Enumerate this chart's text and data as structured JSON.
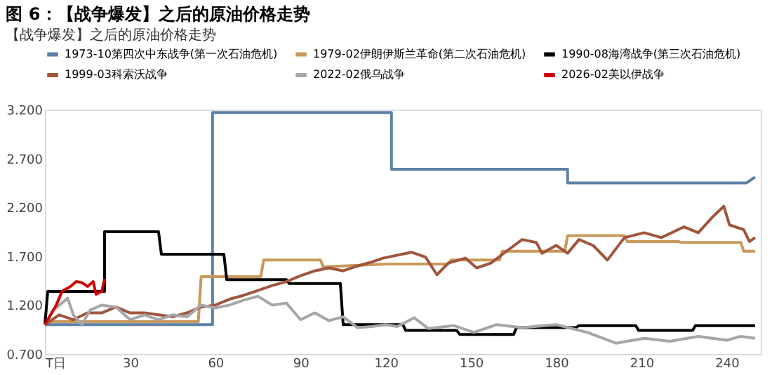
{
  "chart_data": {
    "type": "line",
    "title": "图 6：【战争爆发】之后的原油价格走势",
    "subtitle": "【战争爆发】之后的原油价格走势",
    "xlim": [
      0,
      252
    ],
    "xticks": [
      {
        "value": 0,
        "label": "T日"
      },
      30,
      60,
      90,
      120,
      150,
      180,
      210,
      240
    ],
    "ylim": [
      0.7,
      3.2
    ],
    "yticks": [
      {
        "value": 0.7,
        "label": "0.700"
      },
      {
        "value": 1.2,
        "label": "1.200"
      },
      {
        "value": 1.7,
        "label": "1.700"
      },
      {
        "value": 2.2,
        "label": "2.200"
      },
      {
        "value": 2.7,
        "label": "2.700"
      },
      {
        "value": 3.2,
        "label": "3.200"
      }
    ],
    "grid": false,
    "legend": "top",
    "line_style": "solid",
    "marker": "none",
    "series": [
      {
        "name": "1973-10第四次中东战争(第一次石油危机)",
        "color": "#5b80a5",
        "x": [
          0,
          59,
          59,
          122,
          122,
          184,
          184,
          247,
          250
        ],
        "values": [
          1.0,
          1.0,
          3.17,
          3.17,
          2.59,
          2.59,
          2.45,
          2.45,
          2.51
        ]
      },
      {
        "name": "1979-02伊朗伊斯兰革命(第二次石油危机)",
        "color": "#c9995b",
        "x": [
          0,
          1,
          54,
          55,
          76,
          77,
          97,
          98,
          120,
          142,
          143,
          160,
          161,
          183,
          184,
          204,
          205,
          223,
          224,
          245,
          246,
          250
        ],
        "values": [
          1.0,
          1.03,
          1.03,
          1.49,
          1.49,
          1.66,
          1.66,
          1.59,
          1.62,
          1.62,
          1.66,
          1.66,
          1.75,
          1.75,
          1.91,
          1.91,
          1.85,
          1.85,
          1.84,
          1.84,
          1.75,
          1.75
        ]
      },
      {
        "name": "1990-08海湾战争(第三次石油危机)",
        "color": "#000000",
        "x": [
          0,
          1,
          21,
          21,
          40,
          41,
          63,
          64,
          85,
          86,
          104,
          105,
          126,
          127,
          145,
          146,
          165,
          166,
          187,
          188,
          208,
          209,
          228,
          229,
          250
        ],
        "values": [
          1.0,
          1.34,
          1.34,
          1.95,
          1.95,
          1.72,
          1.72,
          1.46,
          1.46,
          1.42,
          1.42,
          1.0,
          1.0,
          0.94,
          0.94,
          0.9,
          0.9,
          0.97,
          0.97,
          0.99,
          0.99,
          0.94,
          0.94,
          0.99,
          0.99
        ]
      },
      {
        "name": "1999-03科索沃战争",
        "color": "#a0553c",
        "x": [
          0,
          5,
          10,
          15,
          20,
          25,
          30,
          35,
          40,
          45,
          50,
          55,
          60,
          65,
          70,
          75,
          80,
          85,
          90,
          95,
          100,
          105,
          110,
          115,
          119,
          129,
          134,
          138,
          142,
          148,
          152,
          157,
          162,
          168,
          173,
          175,
          180,
          184,
          188,
          193,
          198,
          204,
          211,
          217,
          225,
          230,
          235,
          239,
          241,
          246,
          248,
          250
        ],
        "values": [
          1.0,
          1.1,
          1.05,
          1.12,
          1.12,
          1.18,
          1.12,
          1.12,
          1.1,
          1.08,
          1.12,
          1.18,
          1.2,
          1.26,
          1.3,
          1.35,
          1.4,
          1.44,
          1.5,
          1.55,
          1.58,
          1.55,
          1.6,
          1.64,
          1.68,
          1.74,
          1.69,
          1.51,
          1.63,
          1.68,
          1.58,
          1.63,
          1.74,
          1.87,
          1.84,
          1.73,
          1.81,
          1.73,
          1.87,
          1.81,
          1.66,
          1.89,
          1.94,
          1.89,
          2.0,
          1.94,
          2.1,
          2.21,
          2.02,
          1.97,
          1.85,
          1.89
        ]
      },
      {
        "name": "2022-02俄乌战争",
        "color": "#a6a6a6",
        "x": [
          0,
          3,
          8,
          10,
          13,
          16,
          20,
          25,
          30,
          35,
          40,
          45,
          50,
          55,
          60,
          65,
          70,
          75,
          80,
          85,
          90,
          95,
          100,
          105,
          110,
          115,
          120,
          124,
          130,
          135,
          144,
          151,
          159,
          168,
          180,
          191,
          201,
          211,
          220,
          230,
          240,
          245,
          250
        ],
        "values": [
          1.0,
          1.15,
          1.27,
          1.1,
          1.0,
          1.15,
          1.2,
          1.18,
          1.05,
          1.1,
          1.05,
          1.1,
          1.08,
          1.2,
          1.17,
          1.2,
          1.25,
          1.29,
          1.2,
          1.22,
          1.05,
          1.12,
          1.04,
          1.08,
          0.97,
          0.98,
          1.0,
          0.98,
          1.07,
          0.96,
          0.99,
          0.92,
          1.0,
          0.97,
          1.0,
          0.92,
          0.81,
          0.86,
          0.83,
          0.88,
          0.84,
          0.88,
          0.86
        ]
      },
      {
        "name": "2026-02美以伊战争",
        "color": "#d00000",
        "x": [
          0,
          4,
          6,
          9,
          11,
          13,
          15,
          17,
          18,
          20,
          21
        ],
        "values": [
          1.0,
          1.2,
          1.34,
          1.39,
          1.44,
          1.43,
          1.39,
          1.44,
          1.31,
          1.34,
          1.47
        ]
      }
    ]
  }
}
